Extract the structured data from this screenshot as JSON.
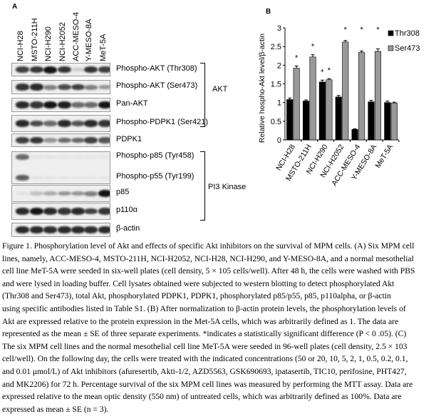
{
  "panel_a": {
    "letter": "A",
    "lanes": [
      "NCI-H28",
      "MSTO-211H",
      "NCI-H290",
      "NCI-H2052",
      "ACC-MESO-4",
      "Y-MESO-8A",
      "MeT-5A"
    ],
    "blots": [
      {
        "label": "Phospho-AKT (Thr308)",
        "intensity": [
          0.8,
          0.85,
          1,
          0.85,
          0.15,
          0.85,
          0.8
        ]
      },
      {
        "label": "Phospho-AKT (Ser473)",
        "intensity": [
          0.85,
          0.9,
          0.5,
          0.75,
          0.8,
          0.5,
          0.4
        ]
      },
      {
        "label": "Pan-AKT",
        "intensity": [
          0.9,
          0.85,
          1,
          0.95,
          0.6,
          0.6,
          1
        ]
      },
      {
        "label": "Phospho-PDPK1 (Ser421)",
        "intensity": [
          0.9,
          0.75,
          0.6,
          0.9,
          0.7,
          0.9,
          0.85
        ]
      },
      {
        "label": "PDPK1",
        "intensity": [
          0.8,
          0.85,
          0.4,
          0.6,
          0.6,
          0.8,
          0.7
        ]
      },
      {
        "label": "Phospho-p85 (Tyr458)",
        "intensity": [
          0.6,
          0.04,
          0.04,
          0.03,
          0.03,
          0.03,
          0.03
        ]
      },
      {
        "label": "Phospho-p55 (Tyr199)",
        "intensity": [
          0.65,
          0.05,
          0.04,
          0.03,
          0.03,
          0.03,
          0.03
        ]
      },
      {
        "label": "p85",
        "intensity": [
          0.05,
          0.2,
          0.3,
          0.4,
          0.4,
          0.5,
          1
        ]
      },
      {
        "label": "p110α",
        "intensity": [
          0.9,
          1,
          0.9,
          0.85,
          0.9,
          0.8,
          0.85
        ]
      },
      {
        "label": "β-actin",
        "intensity": [
          0.9,
          0.9,
          0.88,
          0.9,
          0.9,
          0.88,
          0.9
        ]
      }
    ],
    "groups": {
      "akt": "AKT",
      "pi3k": "PI3 Kinase"
    }
  },
  "chart_data": {
    "type": "bar",
    "panel_letter": "B",
    "categories": [
      "NCI-H28",
      "MSTO-211H",
      "NCI-H290",
      "NCI-H2052",
      "ACC-MESO-4",
      "Y-MESO-8A",
      "MeT-5A"
    ],
    "series": [
      {
        "name": "Thr308",
        "color": "#000000",
        "values": [
          1.08,
          1.04,
          1.55,
          1.15,
          0.28,
          1.02,
          1.0
        ],
        "errors": [
          0.04,
          0.03,
          0.05,
          0.04,
          0.02,
          0.04,
          0.04
        ],
        "significant": [
          false,
          false,
          true,
          false,
          false,
          false,
          false
        ]
      },
      {
        "name": "Ser473",
        "color": "#999999",
        "values": [
          1.92,
          2.22,
          1.61,
          2.62,
          2.34,
          2.37,
          0.99
        ],
        "errors": [
          0.06,
          0.06,
          0.03,
          0.04,
          0.04,
          0.07,
          0.02
        ],
        "significant": [
          true,
          true,
          true,
          true,
          true,
          true,
          false
        ]
      }
    ],
    "ylabel": "Relative hospho-Akt level/β-actin",
    "ylim": [
      0,
      3
    ],
    "yticks": [
      "0",
      "0.5",
      "1",
      "1.5",
      "2",
      "2.5",
      "3"
    ],
    "significance_marker": "*",
    "legend": "top-right",
    "grid": false
  },
  "caption": [
    "Figure 1. Phosphorylation level of Akt and effects of specific Akt inhibitors on the survival of MPM cells. (A) Six MPM cell",
    "lines, namely, ACC-MESO-4, MSTO-211H, NCI-H2052, NCI-H28, NCI-H290, and Y-MESO-8A, and a normal mesothelial",
    "cell line MeT-5A were seeded in six-well plates (cell density, 5 × 105 cells/well). After 48 h, the cells were washed with PBS",
    "and were lysed in loading buffer. Cell lysates obtained were subjected to western blotting to detect phosphorylated Akt",
    "(Thr308 and Ser473), total Akt, phosphorylated PDPK1, PDPK1, phosphorylated p85/p55, p85, p110alpha, or β-actin",
    "using specific antibodies listed in Table S1. (B) After normalization to β-actin protein levels, the phosphorylation levels of",
    "Akt are expressed relative to the protein expression in the Met-5A cells, which was arbitrarily defined as 1. The data are",
    "represented as the mean ± SE of three separate experiments. *indicates a statistically significant difference (P < 0 .05). (C)",
    "The six MPM cell lines and the normal mesothelial cell line MeT-5A were seeded in 96-well plates (cell density, 2.5 × 103",
    "cell/well). On the following day, the cells were treated with the indicated concentrations (50 or 20, 10, 5, 2, 1, 0.5, 0.2, 0.1,",
    "and 0.01 μmol/L) of Akt inhibitors (afuresertib, Akti-1/2, AZD5563, GSK690693, ipatasertib, TIC10, perifosine, PHT427,",
    "and MK2206) for 72 h. Percentage survival of the six MPM cell lines was measured by performing the MTT assay. Data are",
    "expressed relative to the mean optic density (550 nm) of untreated cells, which was arbitrarily defined as 100%. Data are",
    "expressed as mean ± SE (n = 3)."
  ]
}
